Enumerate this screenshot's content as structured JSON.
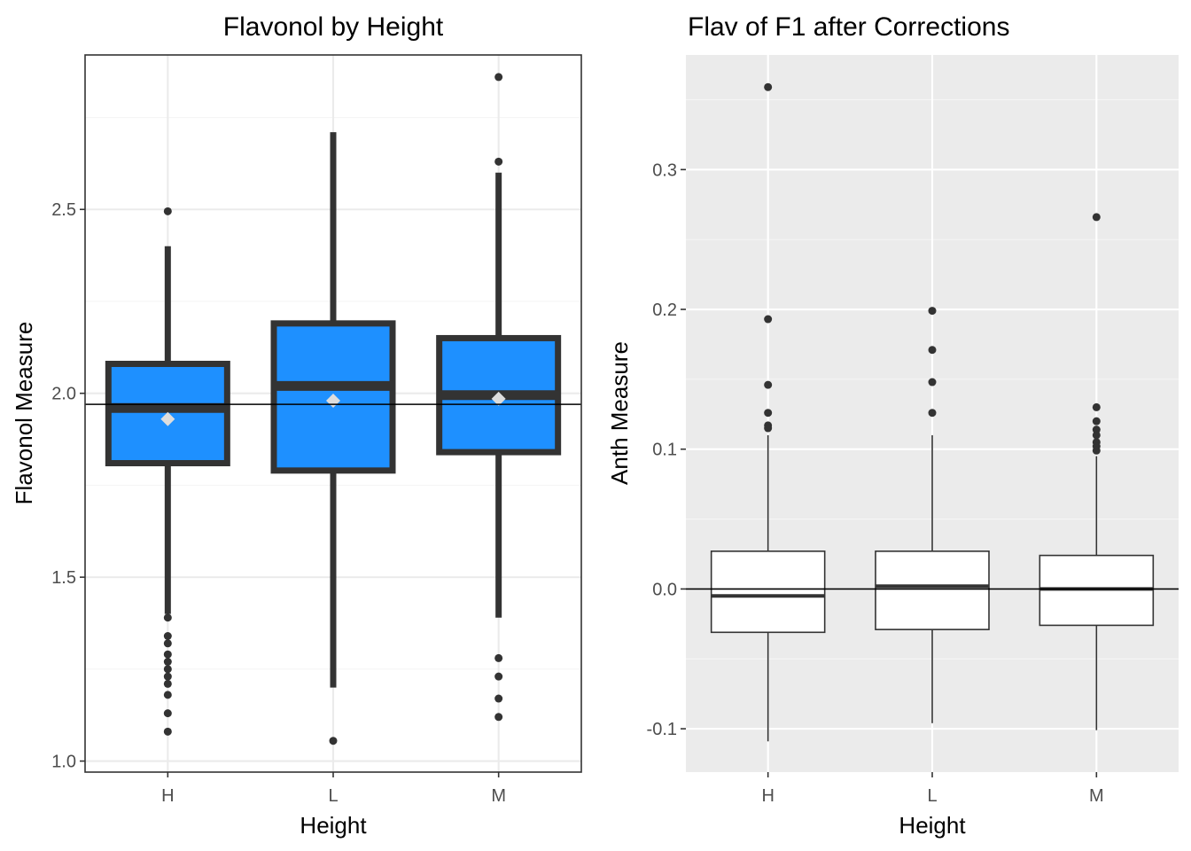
{
  "chart_data": [
    {
      "type": "box",
      "title": "Flavonol by Height",
      "xlabel": "Height",
      "ylabel": "Flavonol Measure",
      "categories": [
        "H",
        "L",
        "M"
      ],
      "ylim": [
        0.97,
        2.92
      ],
      "y_ticks": [
        {
          "value": 1.0,
          "label": "1.0"
        },
        {
          "value": 1.5,
          "label": "1.5"
        },
        {
          "value": 2.0,
          "label": "2.0"
        },
        {
          "value": 2.5,
          "label": "2.5"
        }
      ],
      "reference_line": 1.97,
      "theme": "bw",
      "box_fill": "#1E90FF",
      "box_stroke": "#333333",
      "mean_marker_color": "#DDDDDD",
      "boxes": [
        {
          "category": "H",
          "whisker_low": 1.4,
          "q1": 1.81,
          "median": 1.96,
          "q3": 2.08,
          "whisker_high": 2.4,
          "mean": 1.93,
          "outliers": [
            2.495,
            1.39,
            1.34,
            1.32,
            1.29,
            1.27,
            1.25,
            1.23,
            1.21,
            1.18,
            1.13,
            1.08
          ]
        },
        {
          "category": "L",
          "whisker_low": 1.2,
          "q1": 1.79,
          "median": 2.02,
          "q3": 2.19,
          "whisker_high": 2.71,
          "mean": 1.98,
          "outliers": [
            1.055
          ]
        },
        {
          "category": "M",
          "whisker_low": 1.39,
          "q1": 1.84,
          "median": 1.995,
          "q3": 2.15,
          "whisker_high": 2.6,
          "mean": 1.985,
          "outliers": [
            2.86,
            2.63,
            1.28,
            1.23,
            1.17,
            1.12
          ]
        }
      ]
    },
    {
      "type": "box",
      "title": "Flav of F1 after Corrections",
      "xlabel": "Height",
      "ylabel": "Anth Measure",
      "categories": [
        "H",
        "L",
        "M"
      ],
      "ylim": [
        -0.131,
        0.382
      ],
      "y_ticks": [
        {
          "value": -0.1,
          "label": "-0.1"
        },
        {
          "value": 0.0,
          "label": "0.0"
        },
        {
          "value": 0.1,
          "label": "0.1"
        },
        {
          "value": 0.2,
          "label": "0.2"
        },
        {
          "value": 0.3,
          "label": "0.3"
        }
      ],
      "reference_line": 0.0,
      "theme": "gray",
      "box_fill": "#FFFFFF",
      "box_stroke": "#333333",
      "boxes": [
        {
          "category": "H",
          "whisker_low": -0.109,
          "q1": -0.031,
          "median": -0.005,
          "q3": 0.027,
          "whisker_high": 0.11,
          "outliers": [
            0.359,
            0.193,
            0.146,
            0.126,
            0.117,
            0.115
          ]
        },
        {
          "category": "L",
          "whisker_low": -0.096,
          "q1": -0.029,
          "median": 0.002,
          "q3": 0.027,
          "whisker_high": 0.11,
          "outliers": [
            0.199,
            0.171,
            0.148,
            0.126
          ]
        },
        {
          "category": "M",
          "whisker_low": -0.101,
          "q1": -0.026,
          "median": 0.0,
          "q3": 0.024,
          "whisker_high": 0.095,
          "outliers": [
            0.266,
            0.13,
            0.12,
            0.114,
            0.11,
            0.105,
            0.102,
            0.099
          ]
        }
      ]
    }
  ]
}
